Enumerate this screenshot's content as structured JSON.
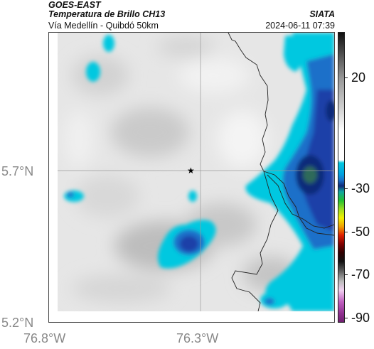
{
  "header": {
    "satellite": "GOES-EAST",
    "product": "Temperatura de Brillo CH13",
    "route": "Vía Medellín - Quibdó 50km",
    "source": "SIATA",
    "datetime": "2024-06-11 07:39"
  },
  "axes": {
    "lat_labels": [
      "5.7°N",
      "5.2°N"
    ],
    "lon_labels": [
      "76.8°W",
      "76.3°W"
    ]
  },
  "colorbar": {
    "tick_labels": [
      "20",
      "-30",
      "-50",
      "-70",
      "-90"
    ]
  },
  "marker": {
    "symbol": "★"
  },
  "colors": {
    "cloud_cold": "#1f3fa8",
    "cloud_deep": "#0f2a7a",
    "cloud_mid": "#1a6fc9",
    "cloud_cyan": "#00c8e0",
    "surface_gray": "#e8e8e8",
    "gridline": "#999999",
    "border_line": "#222222"
  }
}
